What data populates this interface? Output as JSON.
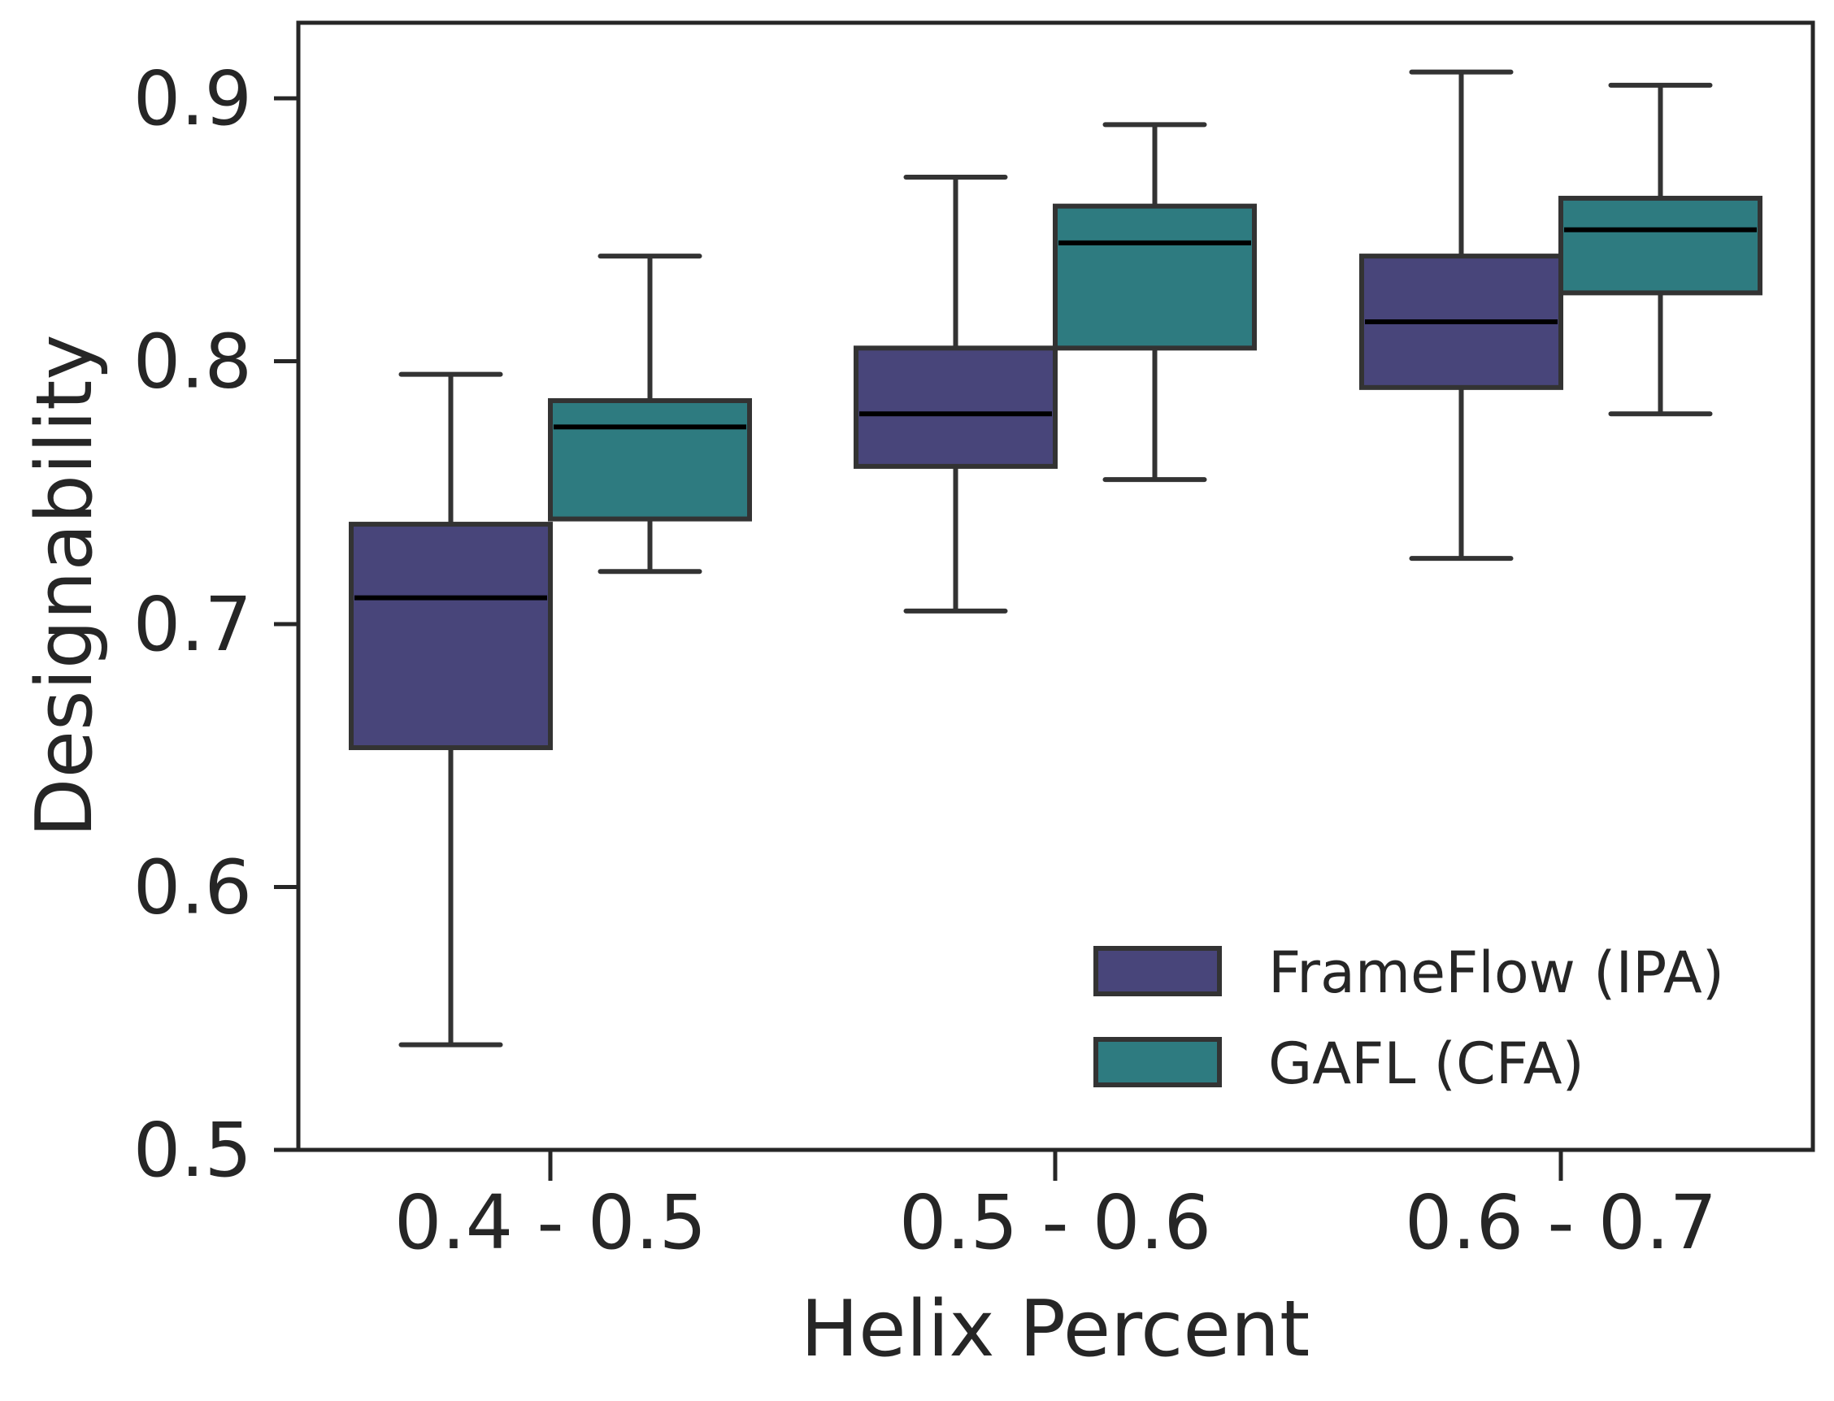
{
  "chart_data": {
    "type": "boxplot",
    "title": "",
    "xlabel": "Helix Percent",
    "ylabel": "Designability",
    "ylim": [
      0.5,
      0.93
    ],
    "yticks": [
      0.5,
      0.6,
      0.7,
      0.8,
      0.9
    ],
    "ytick_labels": [
      "0.5",
      "0.6",
      "0.7",
      "0.8",
      "0.9"
    ],
    "categories": [
      "0.4 - 0.5",
      "0.5 - 0.6",
      "0.6 - 0.7"
    ],
    "legend_position": "bottom-right",
    "series": [
      {
        "name": "FrameFlow (IPA)",
        "color": "#48457a",
        "boxes": [
          {
            "whisker_low": 0.54,
            "q1": 0.653,
            "median": 0.71,
            "q3": 0.738,
            "whisker_high": 0.795
          },
          {
            "whisker_low": 0.705,
            "q1": 0.76,
            "median": 0.78,
            "q3": 0.805,
            "whisker_high": 0.87
          },
          {
            "whisker_low": 0.725,
            "q1": 0.79,
            "median": 0.815,
            "q3": 0.84,
            "whisker_high": 0.91
          }
        ]
      },
      {
        "name": "GAFL (CFA)",
        "color": "#2e7b80",
        "boxes": [
          {
            "whisker_low": 0.72,
            "q1": 0.74,
            "median": 0.775,
            "q3": 0.785,
            "whisker_high": 0.84
          },
          {
            "whisker_low": 0.755,
            "q1": 0.805,
            "median": 0.845,
            "q3": 0.859,
            "whisker_high": 0.89
          },
          {
            "whisker_low": 0.78,
            "q1": 0.826,
            "median": 0.85,
            "q3": 0.862,
            "whisker_high": 0.905
          }
        ]
      }
    ]
  }
}
